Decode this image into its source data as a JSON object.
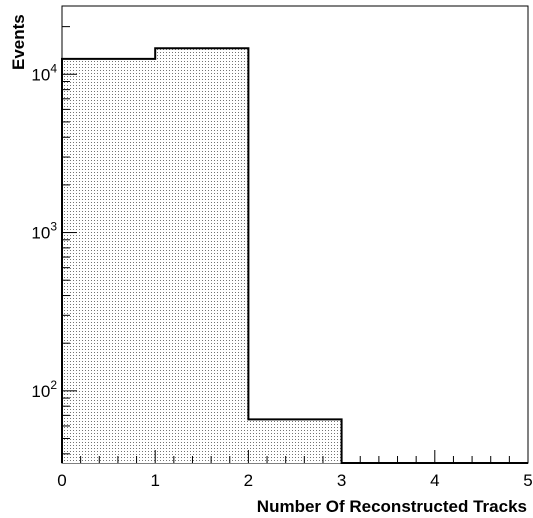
{
  "chart_data": {
    "type": "bar",
    "style": "histogram-step-filled",
    "title": "",
    "xlabel": "Number Of Reconstructed Tracks",
    "ylabel": "Events",
    "x_bin_edges": [
      0,
      1,
      2,
      3,
      4,
      5
    ],
    "values": [
      12500,
      14600,
      66,
      0,
      0
    ],
    "xlim": [
      0,
      5
    ],
    "ylim": [
      35,
      27000
    ],
    "y_scale": "log",
    "x_ticks": [
      {
        "value": 0,
        "label": "0"
      },
      {
        "value": 1,
        "label": "1"
      },
      {
        "value": 2,
        "label": "2"
      },
      {
        "value": 3,
        "label": "3"
      },
      {
        "value": 4,
        "label": "4"
      },
      {
        "value": 5,
        "label": "5"
      }
    ],
    "y_ticks": [
      {
        "value": 100,
        "base": "10",
        "exp": "2"
      },
      {
        "value": 1000,
        "base": "10",
        "exp": "3"
      },
      {
        "value": 10000,
        "base": "10",
        "exp": "4"
      }
    ],
    "grid": false,
    "legend": "none",
    "colors": {
      "line": "#000000",
      "fill_pattern": "#000000",
      "background": "#ffffff"
    }
  }
}
